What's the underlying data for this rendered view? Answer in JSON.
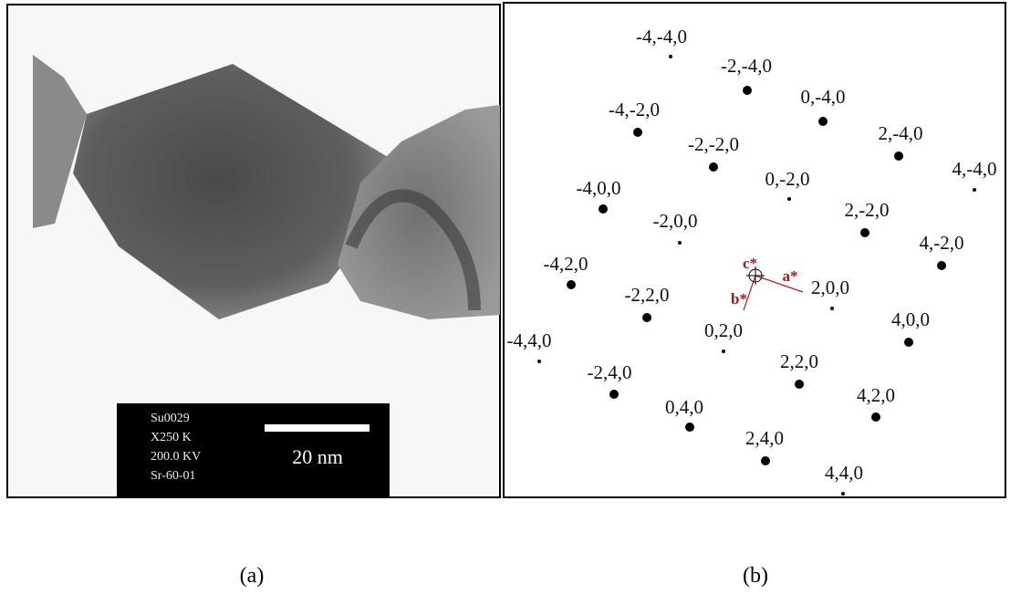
{
  "panel_a": {
    "info_lines": [
      "Su0029",
      "X250 K",
      "200.0 KV",
      "Sr-60-01"
    ],
    "scale_label": "20 nm",
    "caption": "(a)"
  },
  "panel_b": {
    "spots": [
      "-4,-4,0",
      "-2,-4,0",
      "0,-4,0",
      "2,-4,0",
      "4,-4,0",
      "-4,-2,0",
      "-2,-2,0",
      "0,-2,0",
      "2,-2,0",
      "4,-2,0",
      "-4,0,0",
      "-2,0,0",
      "2,0,0",
      "4,0,0",
      "-4,2,0",
      "-2,2,0",
      "0,2,0",
      "2,2,0",
      "4,2,0",
      "-4,4,0",
      "-2,4,0",
      "0,4,0",
      "2,4,0",
      "4,4,0"
    ],
    "axes": {
      "a": "a*",
      "b": "b*",
      "c": "c*"
    },
    "caption": "(b)"
  }
}
